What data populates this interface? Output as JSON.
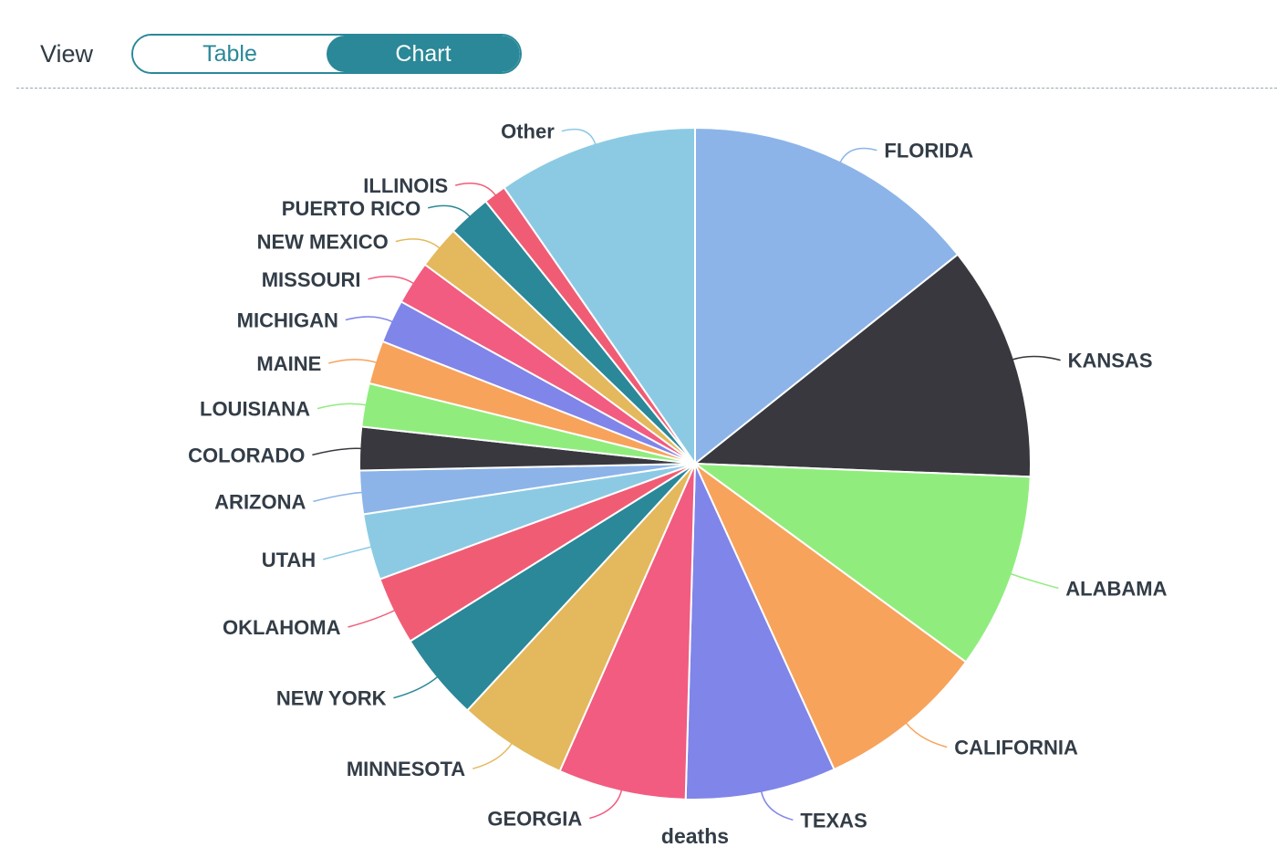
{
  "toolbar": {
    "view_label": "View",
    "tabs": [
      {
        "label": "Table",
        "active": false
      },
      {
        "label": "Chart",
        "active": true
      }
    ],
    "accent_color": "#2a8898"
  },
  "chart_data": {
    "type": "pie",
    "series_name": "deaths",
    "start_angle": "12 o'clock, clockwise",
    "slices": [
      {
        "label": "FLORIDA",
        "value": 14.4,
        "color": "#8cb4e8"
      },
      {
        "label": "KANSAS",
        "value": 11.4,
        "color": "#38383e"
      },
      {
        "label": "ALABAMA",
        "value": 9.5,
        "color": "#90ed7d"
      },
      {
        "label": "CALIFORNIA",
        "value": 8.2,
        "color": "#f7a35c"
      },
      {
        "label": "TEXAS",
        "value": 7.3,
        "color": "#8085e9"
      },
      {
        "label": "GEORGIA",
        "value": 6.2,
        "color": "#f15c80"
      },
      {
        "label": "MINNESOTA",
        "value": 5.3,
        "color": "#e4b85c"
      },
      {
        "label": "NEW YORK",
        "value": 4.3,
        "color": "#2a8898"
      },
      {
        "label": "OKLAHOMA",
        "value": 3.3,
        "color": "#f15c75"
      },
      {
        "label": "UTAH",
        "value": 3.2,
        "color": "#8ccae4"
      },
      {
        "label": "ARIZONA",
        "value": 2.1,
        "color": "#8cb4e8"
      },
      {
        "label": "COLORADO",
        "value": 2.1,
        "color": "#38383e"
      },
      {
        "label": "LOUISIANA",
        "value": 2.1,
        "color": "#90ed7d"
      },
      {
        "label": "MAINE",
        "value": 2.1,
        "color": "#f7a35c"
      },
      {
        "label": "MICHIGAN",
        "value": 2.1,
        "color": "#8085e9"
      },
      {
        "label": "MISSOURI",
        "value": 2.1,
        "color": "#f15c80"
      },
      {
        "label": "NEW MEXICO",
        "value": 2.1,
        "color": "#e4b85c"
      },
      {
        "label": "PUERTO RICO",
        "value": 2.1,
        "color": "#2a8898"
      },
      {
        "label": "ILLINOIS",
        "value": 1.1,
        "color": "#f15c75"
      },
      {
        "label": "Other",
        "value": 9.7,
        "color": "#8ccae4"
      }
    ]
  }
}
